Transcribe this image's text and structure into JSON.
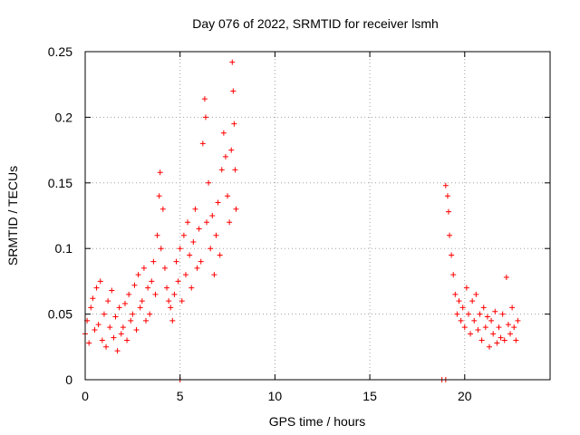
{
  "colors": {
    "series": "#ff0000",
    "grid": "#a0a0a0",
    "axis": "#000000",
    "background": "#ffffff"
  },
  "chart_data": {
    "type": "scatter",
    "title": "Day 076 of 2022, SRMTID for receiver lsmh",
    "xlabel": "GPS time / hours",
    "ylabel": "SRMTID / TECUs",
    "xlim": [
      0,
      24.5
    ],
    "ylim": [
      0,
      0.25
    ],
    "xticks": [
      0,
      5,
      10,
      15,
      20
    ],
    "xtick_labels": [
      "0",
      "5",
      "10",
      "15",
      "20"
    ],
    "yticks": [
      0,
      0.05,
      0.1,
      0.15,
      0.2,
      0.25
    ],
    "ytick_labels": [
      "0",
      "0.05",
      "0.1",
      "0.15",
      "0.2",
      "0.25"
    ],
    "grid": true,
    "marker": "+",
    "series": [
      {
        "name": "SRMTID",
        "points": [
          [
            0.0,
            0.035
          ],
          [
            0.1,
            0.045
          ],
          [
            0.2,
            0.028
          ],
          [
            0.3,
            0.055
          ],
          [
            0.4,
            0.062
          ],
          [
            0.5,
            0.038
          ],
          [
            0.6,
            0.07
          ],
          [
            0.7,
            0.042
          ],
          [
            0.8,
            0.075
          ],
          [
            0.9,
            0.03
          ],
          [
            1.0,
            0.05
          ],
          [
            1.1,
            0.025
          ],
          [
            1.2,
            0.06
          ],
          [
            1.3,
            0.04
          ],
          [
            1.4,
            0.068
          ],
          [
            1.5,
            0.032
          ],
          [
            1.6,
            0.048
          ],
          [
            1.7,
            0.022
          ],
          [
            1.8,
            0.055
          ],
          [
            1.9,
            0.035
          ],
          [
            2.0,
            0.04
          ],
          [
            2.1,
            0.058
          ],
          [
            2.2,
            0.03
          ],
          [
            2.3,
            0.065
          ],
          [
            2.4,
            0.045
          ],
          [
            2.5,
            0.05
          ],
          [
            2.6,
            0.072
          ],
          [
            2.7,
            0.038
          ],
          [
            2.8,
            0.08
          ],
          [
            2.9,
            0.055
          ],
          [
            3.0,
            0.06
          ],
          [
            3.1,
            0.085
          ],
          [
            3.2,
            0.045
          ],
          [
            3.3,
            0.07
          ],
          [
            3.4,
            0.05
          ],
          [
            3.5,
            0.075
          ],
          [
            3.6,
            0.09
          ],
          [
            3.7,
            0.065
          ],
          [
            3.8,
            0.11
          ],
          [
            3.9,
            0.14
          ],
          [
            3.95,
            0.158
          ],
          [
            4.0,
            0.1
          ],
          [
            4.1,
            0.13
          ],
          [
            4.2,
            0.085
          ],
          [
            4.3,
            0.07
          ],
          [
            4.4,
            0.06
          ],
          [
            4.5,
            0.055
          ],
          [
            4.6,
            0.045
          ],
          [
            4.7,
            0.065
          ],
          [
            4.8,
            0.09
          ],
          [
            4.9,
            0.075
          ],
          [
            5.0,
            0.1
          ],
          [
            5.1,
            0.06
          ],
          [
            5.2,
            0.11
          ],
          [
            5.3,
            0.08
          ],
          [
            5.4,
            0.12
          ],
          [
            5.5,
            0.095
          ],
          [
            5.6,
            0.07
          ],
          [
            5.7,
            0.105
          ],
          [
            5.8,
            0.13
          ],
          [
            5.9,
            0.085
          ],
          [
            6.0,
            0.115
          ],
          [
            6.1,
            0.09
          ],
          [
            6.2,
            0.18
          ],
          [
            6.3,
            0.214
          ],
          [
            6.35,
            0.2
          ],
          [
            6.4,
            0.12
          ],
          [
            6.5,
            0.15
          ],
          [
            6.6,
            0.1
          ],
          [
            6.7,
            0.125
          ],
          [
            6.8,
            0.08
          ],
          [
            6.9,
            0.11
          ],
          [
            7.0,
            0.135
          ],
          [
            7.1,
            0.095
          ],
          [
            7.2,
            0.16
          ],
          [
            7.3,
            0.188
          ],
          [
            7.4,
            0.17
          ],
          [
            7.5,
            0.14
          ],
          [
            7.6,
            0.12
          ],
          [
            7.7,
            0.175
          ],
          [
            7.75,
            0.242
          ],
          [
            7.8,
            0.22
          ],
          [
            7.85,
            0.195
          ],
          [
            7.9,
            0.16
          ],
          [
            7.95,
            0.13
          ],
          [
            5.0,
            0.0
          ],
          [
            18.8,
            0.0
          ],
          [
            19.0,
            0.0
          ],
          [
            19.0,
            0.148
          ],
          [
            19.1,
            0.14
          ],
          [
            19.15,
            0.128
          ],
          [
            19.2,
            0.11
          ],
          [
            19.3,
            0.095
          ],
          [
            19.4,
            0.08
          ],
          [
            19.5,
            0.065
          ],
          [
            19.6,
            0.05
          ],
          [
            19.7,
            0.06
          ],
          [
            19.8,
            0.045
          ],
          [
            19.9,
            0.055
          ],
          [
            20.0,
            0.04
          ],
          [
            20.1,
            0.07
          ],
          [
            20.2,
            0.05
          ],
          [
            20.3,
            0.035
          ],
          [
            20.4,
            0.06
          ],
          [
            20.5,
            0.045
          ],
          [
            20.6,
            0.065
          ],
          [
            20.7,
            0.038
          ],
          [
            20.8,
            0.05
          ],
          [
            20.9,
            0.03
          ],
          [
            21.0,
            0.055
          ],
          [
            21.1,
            0.04
          ],
          [
            21.2,
            0.048
          ],
          [
            21.3,
            0.025
          ],
          [
            21.4,
            0.045
          ],
          [
            21.5,
            0.035
          ],
          [
            21.6,
            0.052
          ],
          [
            21.7,
            0.028
          ],
          [
            21.8,
            0.04
          ],
          [
            21.9,
            0.032
          ],
          [
            22.0,
            0.05
          ],
          [
            22.1,
            0.03
          ],
          [
            22.2,
            0.078
          ],
          [
            22.3,
            0.042
          ],
          [
            22.4,
            0.035
          ],
          [
            22.5,
            0.055
          ],
          [
            22.6,
            0.04
          ],
          [
            22.7,
            0.03
          ],
          [
            22.8,
            0.045
          ]
        ]
      }
    ]
  }
}
